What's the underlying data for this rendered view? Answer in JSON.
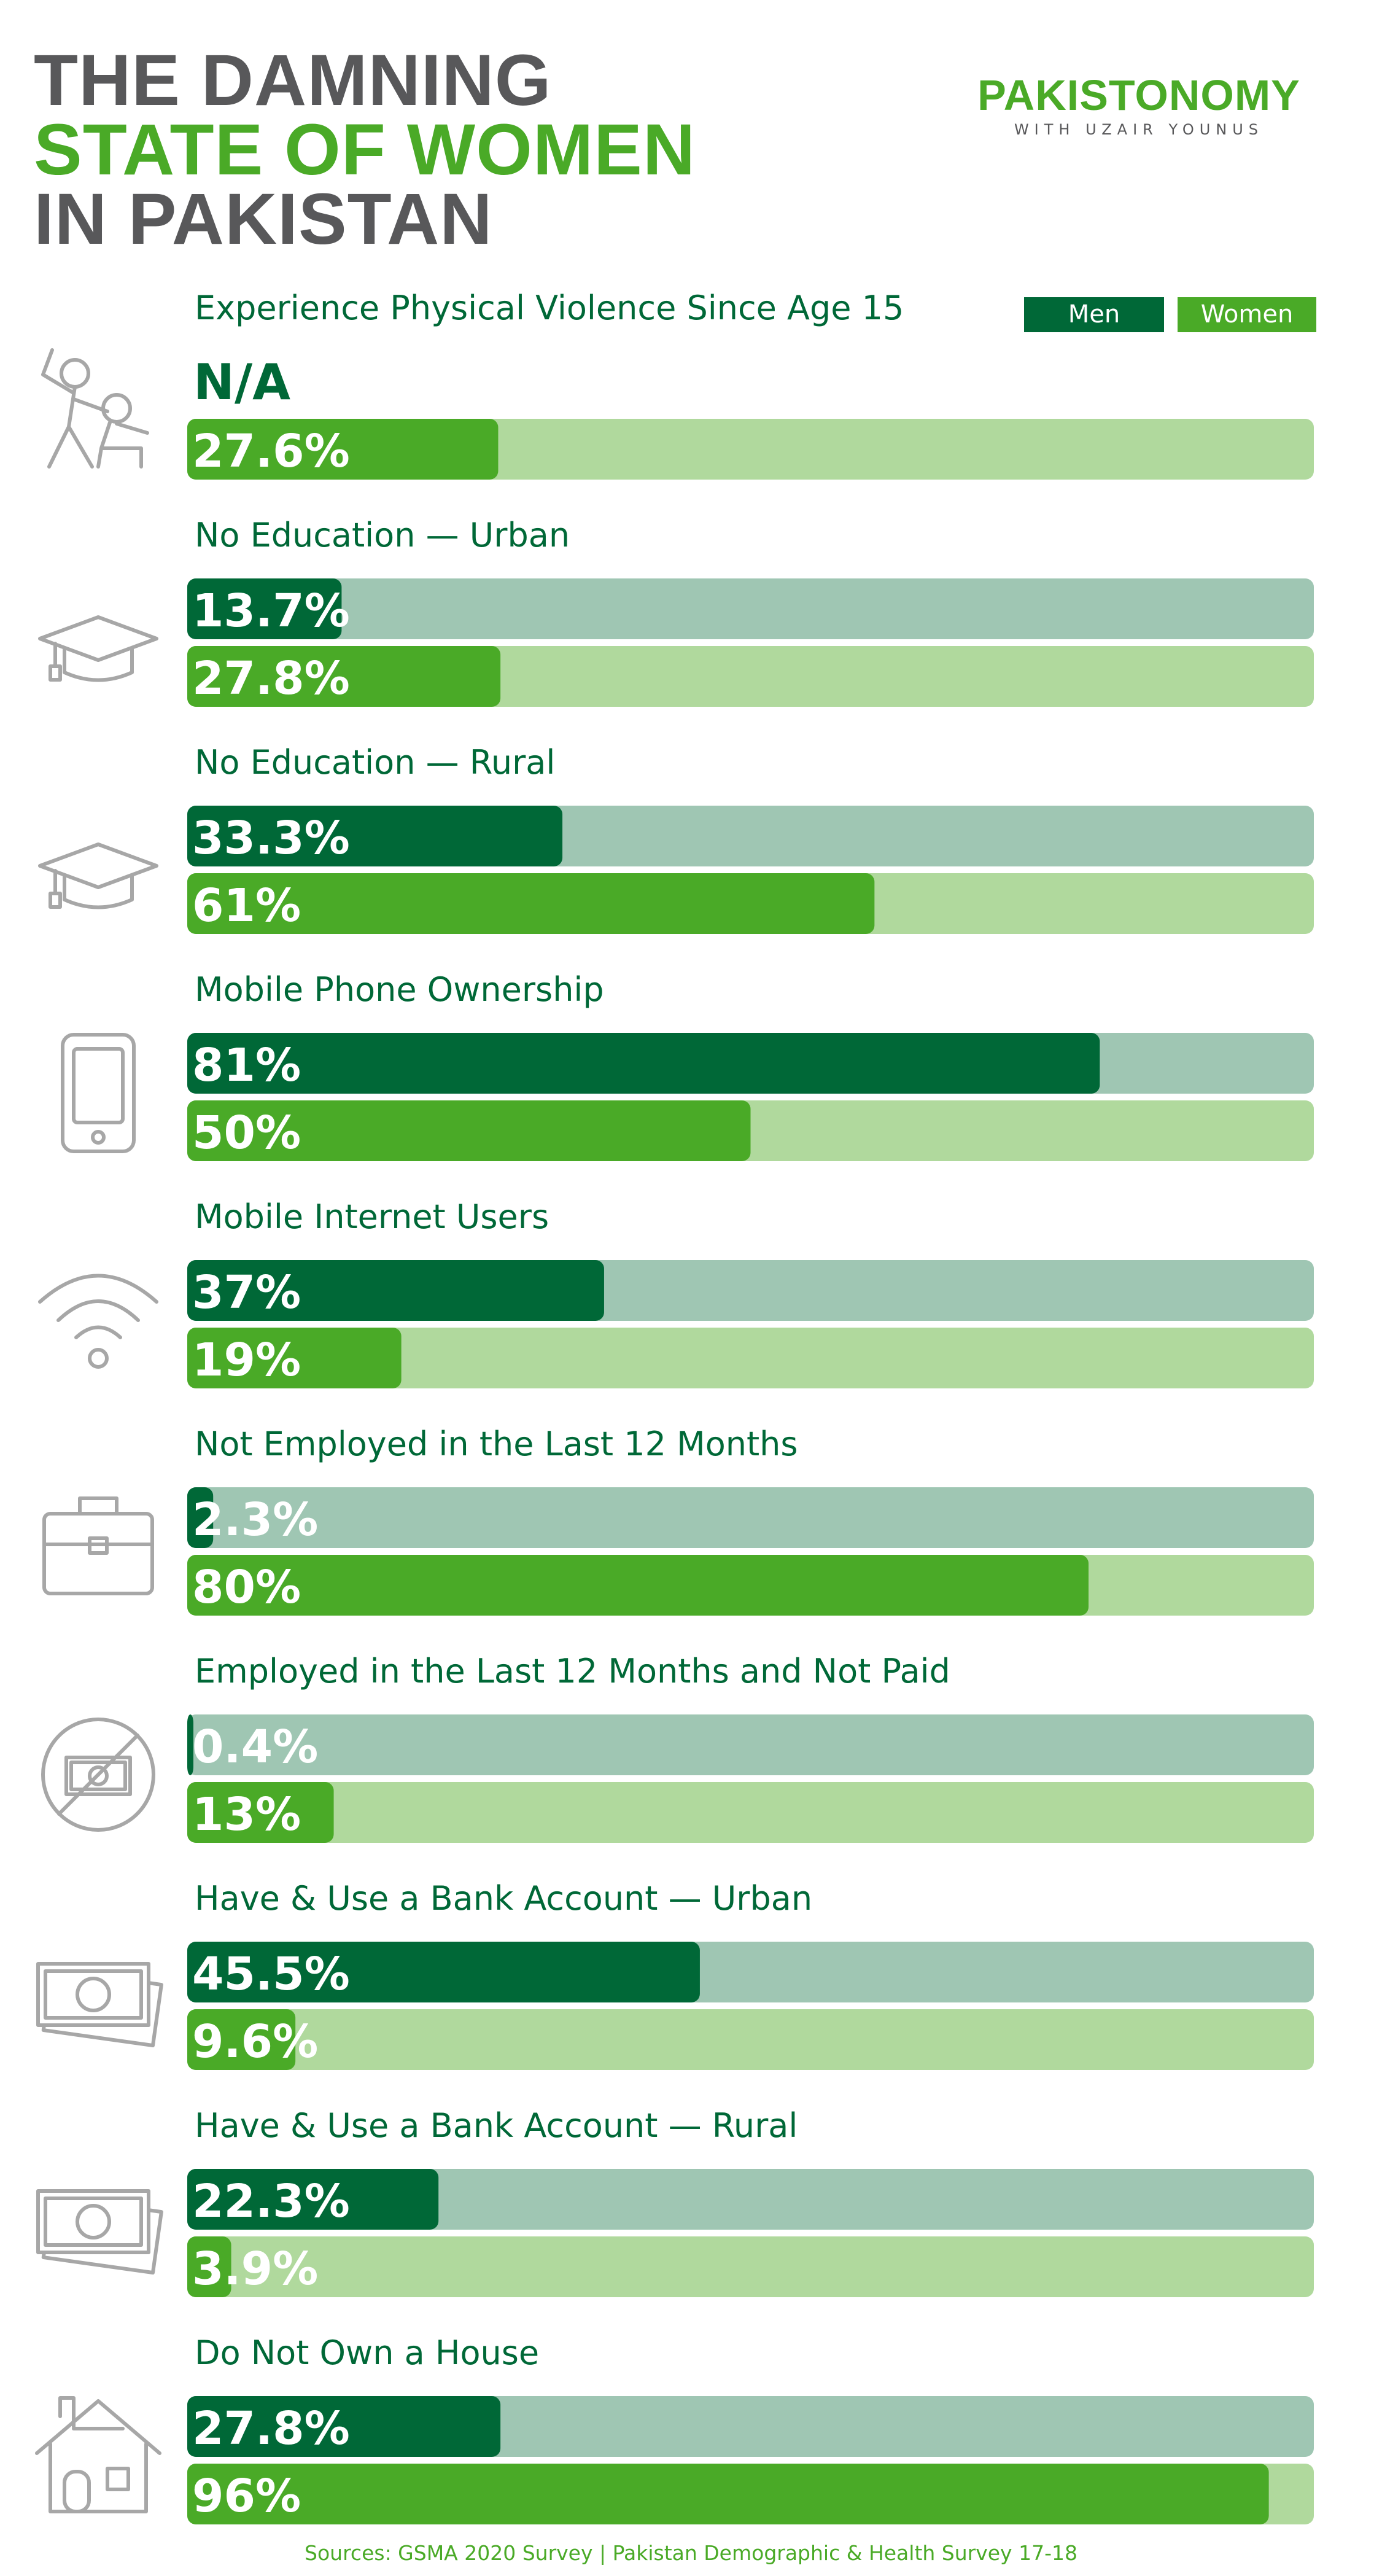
{
  "title": {
    "line1": "THE DAMNING",
    "line2": "STATE OF WOMEN",
    "line3": "IN PAKISTAN"
  },
  "brand": {
    "name": "PAKISTONOMY",
    "tagline": "WITH UZAIR YOUNUS"
  },
  "colors": {
    "men": "#006837",
    "men_track": "#9fc6b3",
    "women": "#4aaa27",
    "women_track": "#b0d99d",
    "label": "#006837",
    "icon": "#a7a7a7"
  },
  "chart_data": {
    "type": "bar",
    "orientation": "horizontal",
    "scale": [
      0,
      100
    ],
    "unit": "%",
    "legend": {
      "position": "top-right",
      "entries": [
        "Men",
        "Women"
      ]
    },
    "series": [
      {
        "name": "Men",
        "key": "men"
      },
      {
        "name": "Women",
        "key": "women"
      }
    ],
    "categories": [
      {
        "label": "Experience Physical Violence Since Age 15",
        "icon": "violence-icon",
        "men": null,
        "men_label": "N/A",
        "women": 27.6,
        "women_label": "27.6%"
      },
      {
        "label": "No Education — Urban",
        "icon": "graduation-cap-icon",
        "men": 13.7,
        "men_label": "13.7%",
        "women": 27.8,
        "women_label": "27.8%"
      },
      {
        "label": "No Education — Rural",
        "icon": "graduation-cap-icon",
        "men": 33.3,
        "men_label": "33.3%",
        "women": 61,
        "women_label": "61%"
      },
      {
        "label": "Mobile Phone Ownership",
        "icon": "mobile-phone-icon",
        "men": 81,
        "men_label": "81%",
        "women": 50,
        "women_label": "50%"
      },
      {
        "label": "Mobile Internet Users",
        "icon": "wifi-icon",
        "men": 37,
        "men_label": "37%",
        "women": 19,
        "women_label": "19%"
      },
      {
        "label": "Not Employed in the Last 12 Months",
        "icon": "briefcase-icon",
        "men": 2.3,
        "men_label": "2.3%",
        "women": 80,
        "women_label": "80%"
      },
      {
        "label": "Employed in the Last 12 Months and Not Paid",
        "icon": "no-money-icon",
        "men": 0.4,
        "men_label": "0.4%",
        "women": 13,
        "women_label": "13%"
      },
      {
        "label": "Have & Use a Bank Account — Urban",
        "icon": "banknote-icon",
        "men": 45.5,
        "men_label": "45.5%",
        "women": 9.6,
        "women_label": "9.6%"
      },
      {
        "label": "Have & Use a Bank Account — Rural",
        "icon": "banknote-icon",
        "men": 22.3,
        "men_label": "22.3%",
        "women": 3.9,
        "women_label": "3.9%"
      },
      {
        "label": "Do Not Own a House",
        "icon": "house-icon",
        "men": 27.8,
        "men_label": "27.8%",
        "women": 96,
        "women_label": "96%"
      }
    ]
  },
  "source": "Sources: GSMA 2020 Survey | Pakistan Demographic & Health Survey 17-18"
}
